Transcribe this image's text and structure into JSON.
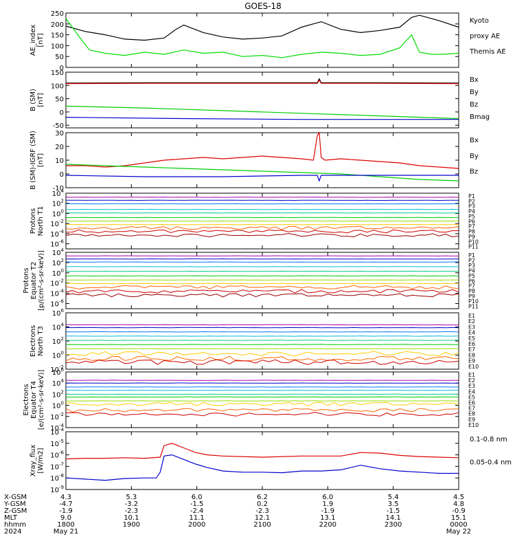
{
  "title": "GOES-18",
  "colors": {
    "ae_kyoto": "#00dd00",
    "ae_themis": "#000000",
    "bx": "#0000cc",
    "by": "#00cc00",
    "bz": "#dd0000",
    "bmag": "#000000",
    "xray_long": "#dd0000",
    "xray_short": "#0000cc"
  },
  "chart_data": [
    {
      "type": "line",
      "name": "ae",
      "ylabel": [
        "AE_index",
        "[nT]"
      ],
      "ylim": [
        0,
        250
      ],
      "ticks": [
        0,
        50,
        100,
        150,
        200,
        250
      ],
      "legend": [
        {
          "text": "Kyoto",
          "color": "#00dd00"
        },
        {
          "text": "proxy AE",
          "color": "#00dd00"
        },
        {
          "text": "Themis AE",
          "color": "#000000"
        }
      ],
      "series": [
        {
          "label": "Themis AE",
          "color": "#000000",
          "x": [
            0.0,
            0.05,
            0.1,
            0.15,
            0.2,
            0.25,
            0.28,
            0.3,
            0.35,
            0.4,
            0.45,
            0.5,
            0.55,
            0.6,
            0.65,
            0.7,
            0.75,
            0.8,
            0.85,
            0.88,
            0.9,
            0.95,
            1.0
          ],
          "y": [
            190,
            165,
            150,
            130,
            125,
            135,
            175,
            195,
            160,
            140,
            130,
            135,
            145,
            185,
            210,
            175,
            160,
            170,
            185,
            230,
            240,
            215,
            185
          ]
        },
        {
          "label": "Kyoto proxy AE",
          "color": "#00dd00",
          "x": [
            0.0,
            0.03,
            0.06,
            0.1,
            0.15,
            0.2,
            0.25,
            0.3,
            0.35,
            0.4,
            0.45,
            0.5,
            0.55,
            0.6,
            0.65,
            0.7,
            0.75,
            0.8,
            0.85,
            0.88,
            0.9,
            0.93,
            0.96,
            1.0
          ],
          "y": [
            225,
            150,
            80,
            65,
            55,
            70,
            60,
            80,
            65,
            70,
            50,
            55,
            45,
            60,
            70,
            65,
            55,
            60,
            90,
            150,
            70,
            60,
            60,
            65
          ]
        }
      ]
    },
    {
      "type": "line",
      "name": "b-sm",
      "ylabel": [
        "B (SM)",
        "[nT]"
      ],
      "ylim": [
        -60,
        150
      ],
      "ticks": [
        -50,
        0,
        50,
        100,
        150
      ],
      "legend": [
        {
          "text": "Bx",
          "color": "#0000cc"
        },
        {
          "text": "By",
          "color": "#00cc00"
        },
        {
          "text": "Bz",
          "color": "#dd0000"
        },
        {
          "text": "Bmag",
          "color": "#000000"
        }
      ],
      "series": [
        {
          "label": "Bmag",
          "color": "#000000",
          "x": [
            0.0,
            0.2,
            0.4,
            0.6,
            0.64,
            0.645,
            0.65,
            0.8,
            1.0
          ],
          "y": [
            109,
            110,
            110,
            110,
            110,
            125,
            110,
            110,
            109
          ]
        },
        {
          "label": "Bz",
          "color": "#dd0000",
          "x": [
            0.0,
            0.2,
            0.4,
            0.6,
            0.64,
            0.645,
            0.65,
            0.8,
            1.0
          ],
          "y": [
            107,
            108,
            108,
            108,
            108,
            120,
            108,
            108,
            107
          ]
        },
        {
          "label": "By",
          "color": "#00cc00",
          "x": [
            0.0,
            0.2,
            0.4,
            0.6,
            0.8,
            1.0
          ],
          "y": [
            22,
            15,
            5,
            -5,
            -15,
            -25
          ]
        },
        {
          "label": "Bx",
          "color": "#0000cc",
          "x": [
            0.0,
            0.3,
            0.6,
            1.0
          ],
          "y": [
            -20,
            -25,
            -28,
            -28
          ]
        }
      ]
    },
    {
      "type": "line",
      "name": "b-minus-igrf",
      "ylabel": [
        "B (SM)-IGRF (SM)",
        "[nT]"
      ],
      "ylim": [
        -10,
        30
      ],
      "ticks": [
        -10,
        0,
        10,
        20,
        30
      ],
      "legend": [
        {
          "text": "Bx",
          "color": "#0000cc"
        },
        {
          "text": "By",
          "color": "#00cc00"
        },
        {
          "text": "Bz",
          "color": "#dd0000"
        }
      ],
      "series": [
        {
          "label": "Bz",
          "color": "#dd0000",
          "x": [
            0.0,
            0.05,
            0.1,
            0.15,
            0.2,
            0.25,
            0.3,
            0.35,
            0.4,
            0.45,
            0.5,
            0.55,
            0.6,
            0.63,
            0.64,
            0.645,
            0.65,
            0.66,
            0.7,
            0.75,
            0.8,
            0.85,
            0.9,
            0.95,
            1.0
          ],
          "y": [
            6,
            6,
            5,
            6,
            8,
            10,
            11,
            12,
            11,
            12,
            13,
            12,
            11,
            10,
            28,
            30,
            12,
            10,
            11,
            10,
            9,
            8,
            6,
            5,
            4
          ]
        },
        {
          "label": "By",
          "color": "#00cc00",
          "x": [
            0.0,
            0.1,
            0.2,
            0.3,
            0.4,
            0.5,
            0.6,
            0.7,
            0.8,
            0.9,
            1.0
          ],
          "y": [
            7,
            6,
            5,
            4,
            3,
            2,
            1,
            0,
            -2,
            -4,
            -5
          ]
        },
        {
          "label": "Bx",
          "color": "#0000cc",
          "x": [
            0.0,
            0.2,
            0.4,
            0.6,
            0.64,
            0.645,
            0.65,
            0.8,
            1.0
          ],
          "y": [
            -1,
            -2,
            -2,
            -1,
            -1,
            -5,
            -1,
            -1,
            -1
          ]
        }
      ]
    },
    {
      "type": "line",
      "name": "protons-north",
      "log": true,
      "ylabel": [
        "Protons",
        "North T1"
      ],
      "ylim_exp": [
        -7,
        4
      ],
      "tick_exps": [
        -6,
        -4,
        -2,
        0,
        2,
        4
      ],
      "legend": [
        "P1",
        "P2",
        "P3",
        "P4",
        "P5",
        "P6",
        "P7",
        "P8",
        "P9",
        "P10",
        "P11"
      ],
      "levels_exp": [
        3.2,
        2.6,
        1.9,
        0.8,
        0.1,
        -0.8,
        -1.5,
        -2.2,
        -2.9,
        -3.6,
        -4.3
      ]
    },
    {
      "type": "line",
      "name": "protons-equator",
      "log": true,
      "ylabel": [
        "Protons",
        "Equator T2",
        "[p/(cm²-s-sr-keV)]"
      ],
      "ylim_exp": [
        -7,
        4
      ],
      "tick_exps": [
        -6,
        -4,
        -2,
        0,
        2,
        4
      ],
      "legend": [
        "P1",
        "P2",
        "P3",
        "P4",
        "P5",
        "P6",
        "P7",
        "P8",
        "P9",
        "P10",
        "P11"
      ],
      "levels_exp": [
        3.3,
        2.7,
        2.1,
        1.2,
        0.3,
        -0.6,
        -1.4,
        -2.1,
        -2.8,
        -3.6,
        -4.4
      ]
    },
    {
      "type": "line",
      "name": "electrons-north",
      "log": true,
      "ylabel": [
        "Electrons",
        "North T3"
      ],
      "ylim_exp": [
        -2,
        6
      ],
      "tick_exps": [
        -2,
        0,
        2,
        4,
        6
      ],
      "legend": [
        "E1",
        "E2",
        "E3",
        "E4",
        "E5",
        "E6",
        "E7",
        "E8",
        "E9",
        "E10"
      ],
      "levels_exp": [
        4.3,
        3.9,
        3.3,
        2.7,
        2.1,
        1.5,
        0.9,
        0.2,
        -0.5,
        -1.0
      ]
    },
    {
      "type": "line",
      "name": "electrons-equator",
      "log": true,
      "ylabel": [
        "Electrons",
        "Equator T4",
        "[e/(cm²-s-sr-keV)]"
      ],
      "ylim_exp": [
        -4,
        6
      ],
      "tick_exps": [
        -4,
        -2,
        0,
        2,
        4,
        6
      ],
      "legend": [
        "E1",
        "E2",
        "E3",
        "E4",
        "E5",
        "E6",
        "E7",
        "E8",
        "E9",
        "E10"
      ],
      "levels_exp": [
        4.5,
        4.0,
        3.3,
        2.7,
        2.0,
        1.5,
        0.8,
        0.2,
        -0.9,
        -1.6
      ]
    },
    {
      "type": "line",
      "name": "xray",
      "log": true,
      "ylabel": [
        "Xray_flux",
        "[W/m2]"
      ],
      "ylim_exp": [
        -9,
        -4
      ],
      "tick_exps": [
        -9,
        -8,
        -7,
        -6,
        -5,
        -4
      ],
      "legend": [
        {
          "text": "0.1-0.8 nm",
          "color": "#dd0000"
        },
        {
          "text": "0.05-0.4 nm",
          "color": "#0000cc"
        }
      ],
      "series": [
        {
          "label": "0.1-0.8 nm",
          "color": "#dd0000",
          "x": [
            0.0,
            0.05,
            0.1,
            0.15,
            0.2,
            0.24,
            0.25,
            0.27,
            0.3,
            0.33,
            0.36,
            0.4,
            0.5,
            0.6,
            0.7,
            0.75,
            0.8,
            0.85,
            0.9,
            0.95,
            1.0
          ],
          "y": [
            -6.35,
            -6.3,
            -6.3,
            -6.25,
            -6.3,
            -6.2,
            -5.2,
            -5.0,
            -5.4,
            -5.8,
            -6.0,
            -6.1,
            -6.2,
            -6.1,
            -6.1,
            -5.8,
            -5.85,
            -6.05,
            -6.15,
            -6.2,
            -6.25
          ]
        },
        {
          "label": "0.05-0.4 nm",
          "color": "#0000cc",
          "x": [
            0.0,
            0.05,
            0.1,
            0.15,
            0.2,
            0.23,
            0.24,
            0.25,
            0.27,
            0.3,
            0.33,
            0.36,
            0.4,
            0.45,
            0.5,
            0.55,
            0.6,
            0.65,
            0.7,
            0.75,
            0.8,
            0.85,
            0.9,
            0.95,
            1.0
          ],
          "y": [
            -8.0,
            -8.1,
            -8.2,
            -8.05,
            -8.0,
            -8.0,
            -7.5,
            -6.1,
            -6.0,
            -6.4,
            -6.8,
            -7.1,
            -7.4,
            -7.5,
            -7.5,
            -7.55,
            -7.4,
            -7.4,
            -7.3,
            -6.9,
            -7.2,
            -7.4,
            -7.5,
            -7.6,
            -7.6
          ]
        }
      ]
    }
  ],
  "xaxis": {
    "row_labels": [
      "X-GSM",
      "Y-GSM",
      "Z-GSM",
      "MLT",
      "hhmm",
      "2024"
    ],
    "columns": [
      [
        "4.3",
        "-4.7",
        "-1.9",
        "9.0",
        "1800",
        "May 21"
      ],
      [
        "5.3",
        "-3.2",
        "-2.3",
        "10.1",
        "1900",
        ""
      ],
      [
        "6.0",
        "-1.5",
        "-2.4",
        "11.1",
        "2000",
        ""
      ],
      [
        "6.2",
        "0.2",
        "-2.3",
        "12.1",
        "2100",
        ""
      ],
      [
        "6.0",
        "1.9",
        "-1.9",
        "13.1",
        "2200",
        ""
      ],
      [
        "5.4",
        "3.5",
        "-1.5",
        "14.1",
        "2300",
        ""
      ],
      [
        "4.5",
        "4.8",
        "-0.9",
        "15.1",
        "0000",
        "May 22"
      ]
    ]
  }
}
